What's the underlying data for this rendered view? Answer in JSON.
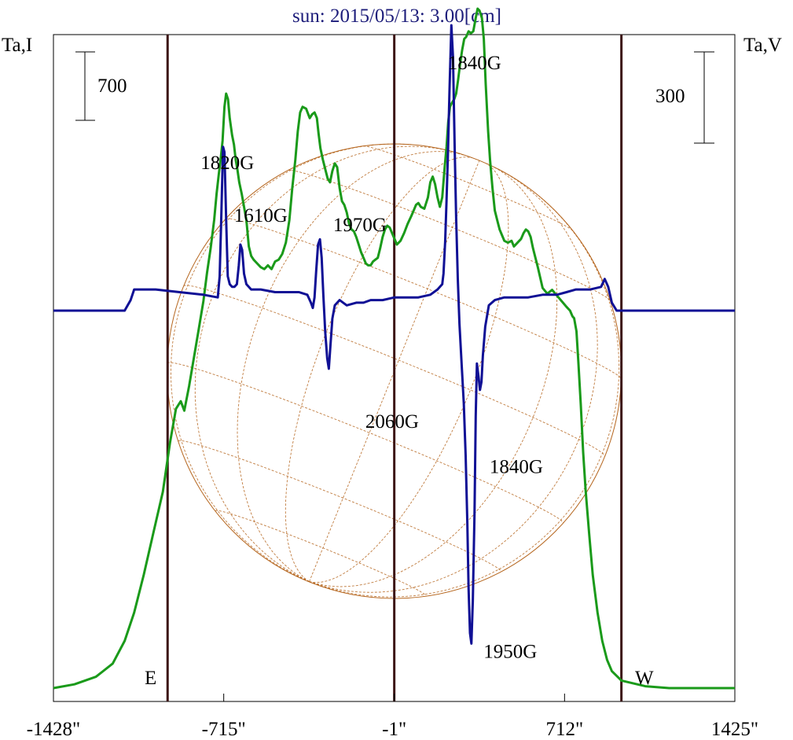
{
  "chart_data": {
    "type": "line",
    "title": "sun: 2015/05/13: 3.00[cm]",
    "left_axis_label": "Ta,I",
    "right_axis_label": "Ta,V",
    "left_scale_label": "700",
    "right_scale_label": "300",
    "xlim": [
      -1428,
      1425
    ],
    "x_ticks": [
      {
        "value": -1428,
        "label": "-1428\""
      },
      {
        "value": -715,
        "label": "-715\""
      },
      {
        "value": -1,
        "label": "-1\""
      },
      {
        "value": 712,
        "label": "712\""
      },
      {
        "value": 1425,
        "label": "1425\""
      }
    ],
    "vertical_lines": [
      -950,
      -1,
      950
    ],
    "limb_labels": {
      "east": "E",
      "west": "W"
    },
    "grid": false,
    "colors": {
      "intensity": "#1a9a1a",
      "polarization": "#101095",
      "disk": "#b5651d",
      "vlines": "#3c1414",
      "title": "#1c1c7a"
    },
    "series": [
      {
        "key": "intensity",
        "points": [
          [
            -1428,
            0.0
          ],
          [
            -1340,
            0.02
          ],
          [
            -1250,
            0.06
          ],
          [
            -1180,
            0.13
          ],
          [
            -1130,
            0.25
          ],
          [
            -1090,
            0.4
          ],
          [
            -1050,
            0.6
          ],
          [
            -1010,
            0.82
          ],
          [
            -970,
            1.04
          ],
          [
            -940,
            1.3
          ],
          [
            -915,
            1.48
          ],
          [
            -895,
            1.52
          ],
          [
            -880,
            1.47
          ],
          [
            -860,
            1.6
          ],
          [
            -840,
            1.75
          ],
          [
            -820,
            1.9
          ],
          [
            -800,
            2.05
          ],
          [
            -785,
            2.2
          ],
          [
            -770,
            2.33
          ],
          [
            -755,
            2.48
          ],
          [
            -745,
            2.62
          ],
          [
            -735,
            2.73
          ],
          [
            -728,
            2.8
          ],
          [
            -720,
            2.9
          ],
          [
            -712,
            3.08
          ],
          [
            -705,
            3.15
          ],
          [
            -697,
            3.12
          ],
          [
            -690,
            3.02
          ],
          [
            -680,
            2.93
          ],
          [
            -672,
            2.88
          ],
          [
            -665,
            2.8
          ],
          [
            -658,
            2.75
          ],
          [
            -650,
            2.68
          ],
          [
            -640,
            2.62
          ],
          [
            -630,
            2.55
          ],
          [
            -620,
            2.48
          ],
          [
            -610,
            2.34
          ],
          [
            -600,
            2.29
          ],
          [
            -590,
            2.27
          ],
          [
            -575,
            2.25
          ],
          [
            -560,
            2.23
          ],
          [
            -545,
            2.22
          ],
          [
            -530,
            2.24
          ],
          [
            -515,
            2.22
          ],
          [
            -500,
            2.26
          ],
          [
            -485,
            2.27
          ],
          [
            -470,
            2.3
          ],
          [
            -455,
            2.36
          ],
          [
            -440,
            2.48
          ],
          [
            -428,
            2.65
          ],
          [
            -415,
            2.8
          ],
          [
            -405,
            2.95
          ],
          [
            -395,
            3.05
          ],
          [
            -385,
            3.08
          ],
          [
            -370,
            3.07
          ],
          [
            -355,
            3.02
          ],
          [
            -345,
            3.04
          ],
          [
            -335,
            3.05
          ],
          [
            -325,
            3.02
          ],
          [
            -318,
            2.94
          ],
          [
            -310,
            2.86
          ],
          [
            -300,
            2.8
          ],
          [
            -290,
            2.75
          ],
          [
            -280,
            2.7
          ],
          [
            -270,
            2.68
          ],
          [
            -260,
            2.74
          ],
          [
            -250,
            2.78
          ],
          [
            -240,
            2.76
          ],
          [
            -230,
            2.65
          ],
          [
            -220,
            2.58
          ],
          [
            -210,
            2.56
          ],
          [
            -200,
            2.52
          ],
          [
            -190,
            2.46
          ],
          [
            -180,
            2.43
          ],
          [
            -170,
            2.42
          ],
          [
            -160,
            2.39
          ],
          [
            -150,
            2.35
          ],
          [
            -140,
            2.31
          ],
          [
            -130,
            2.28
          ],
          [
            -120,
            2.25
          ],
          [
            -110,
            2.24
          ],
          [
            -100,
            2.24
          ],
          [
            -90,
            2.26
          ],
          [
            -80,
            2.27
          ],
          [
            -70,
            2.28
          ],
          [
            -60,
            2.33
          ],
          [
            -50,
            2.39
          ],
          [
            -40,
            2.43
          ],
          [
            -30,
            2.45
          ],
          [
            -20,
            2.44
          ],
          [
            -10,
            2.41
          ],
          [
            0,
            2.38
          ],
          [
            10,
            2.35
          ],
          [
            25,
            2.37
          ],
          [
            40,
            2.41
          ],
          [
            55,
            2.46
          ],
          [
            70,
            2.5
          ],
          [
            80,
            2.53
          ],
          [
            90,
            2.56
          ],
          [
            100,
            2.57
          ],
          [
            110,
            2.55
          ],
          [
            125,
            2.54
          ],
          [
            140,
            2.6
          ],
          [
            150,
            2.68
          ],
          [
            160,
            2.71
          ],
          [
            170,
            2.67
          ],
          [
            180,
            2.6
          ],
          [
            190,
            2.55
          ],
          [
            200,
            2.6
          ],
          [
            210,
            2.76
          ],
          [
            218,
            2.87
          ],
          [
            225,
            3.0
          ],
          [
            232,
            3.08
          ],
          [
            240,
            3.1
          ],
          [
            250,
            3.12
          ],
          [
            258,
            3.15
          ],
          [
            266,
            3.22
          ],
          [
            274,
            3.3
          ],
          [
            283,
            3.38
          ],
          [
            292,
            3.44
          ],
          [
            300,
            3.45
          ],
          [
            310,
            3.48
          ],
          [
            320,
            3.47
          ],
          [
            330,
            3.48
          ],
          [
            340,
            3.55
          ],
          [
            348,
            3.6
          ],
          [
            356,
            3.59
          ],
          [
            366,
            3.55
          ],
          [
            374,
            3.44
          ],
          [
            382,
            3.2
          ],
          [
            392,
            2.95
          ],
          [
            400,
            2.8
          ],
          [
            410,
            2.65
          ],
          [
            420,
            2.53
          ],
          [
            430,
            2.48
          ],
          [
            440,
            2.43
          ],
          [
            450,
            2.4
          ],
          [
            460,
            2.37
          ],
          [
            475,
            2.36
          ],
          [
            490,
            2.37
          ],
          [
            500,
            2.34
          ],
          [
            515,
            2.36
          ],
          [
            530,
            2.38
          ],
          [
            540,
            2.41
          ],
          [
            550,
            2.43
          ],
          [
            560,
            2.42
          ],
          [
            570,
            2.39
          ],
          [
            580,
            2.33
          ],
          [
            600,
            2.23
          ],
          [
            620,
            2.12
          ],
          [
            640,
            2.09
          ],
          [
            660,
            2.11
          ],
          [
            680,
            2.08
          ],
          [
            700,
            2.05
          ],
          [
            720,
            2.02
          ],
          [
            735,
            2.0
          ],
          [
            745,
            1.97
          ],
          [
            752,
            1.96
          ],
          [
            762,
            1.89
          ],
          [
            770,
            1.72
          ],
          [
            780,
            1.5
          ],
          [
            790,
            1.25
          ],
          [
            800,
            1.05
          ],
          [
            815,
            0.82
          ],
          [
            830,
            0.6
          ],
          [
            850,
            0.4
          ],
          [
            870,
            0.25
          ],
          [
            890,
            0.15
          ],
          [
            910,
            0.09
          ],
          [
            950,
            0.04
          ],
          [
            1050,
            0.01
          ],
          [
            1150,
            0.0
          ],
          [
            1300,
            0.0
          ],
          [
            1425,
            0.0
          ]
        ]
      },
      {
        "key": "polarization",
        "points": [
          [
            -1428,
            0.0
          ],
          [
            -1300,
            0.0
          ],
          [
            -1200,
            0.0
          ],
          [
            -1130,
            0.0
          ],
          [
            -1105,
            0.04
          ],
          [
            -1090,
            0.08
          ],
          [
            -1000,
            0.08
          ],
          [
            -900,
            0.07
          ],
          [
            -800,
            0.06
          ],
          [
            -740,
            0.05
          ],
          [
            -732,
            0.13
          ],
          [
            -725,
            0.36
          ],
          [
            -718,
            0.62
          ],
          [
            -712,
            0.6
          ],
          [
            -705,
            0.35
          ],
          [
            -698,
            0.13
          ],
          [
            -690,
            0.1
          ],
          [
            -680,
            0.09
          ],
          [
            -670,
            0.09
          ],
          [
            -660,
            0.1
          ],
          [
            -652,
            0.17
          ],
          [
            -645,
            0.25
          ],
          [
            -638,
            0.23
          ],
          [
            -630,
            0.14
          ],
          [
            -620,
            0.1
          ],
          [
            -600,
            0.08
          ],
          [
            -560,
            0.08
          ],
          [
            -500,
            0.07
          ],
          [
            -450,
            0.07
          ],
          [
            -400,
            0.07
          ],
          [
            -365,
            0.06
          ],
          [
            -350,
            0.03
          ],
          [
            -342,
            0.01
          ],
          [
            -335,
            0.05
          ],
          [
            -328,
            0.15
          ],
          [
            -320,
            0.25
          ],
          [
            -312,
            0.27
          ],
          [
            -305,
            0.2
          ],
          [
            -298,
            0.06
          ],
          [
            -290,
            -0.08
          ],
          [
            -282,
            -0.18
          ],
          [
            -275,
            -0.22
          ],
          [
            -268,
            -0.13
          ],
          [
            -260,
            -0.03
          ],
          [
            -250,
            0.02
          ],
          [
            -230,
            0.04
          ],
          [
            -200,
            0.02
          ],
          [
            -160,
            0.03
          ],
          [
            -130,
            0.03
          ],
          [
            -100,
            0.04
          ],
          [
            -50,
            0.04
          ],
          [
            0,
            0.05
          ],
          [
            50,
            0.05
          ],
          [
            100,
            0.05
          ],
          [
            150,
            0.06
          ],
          [
            180,
            0.08
          ],
          [
            200,
            0.1
          ],
          [
            205,
            0.14
          ],
          [
            212,
            0.26
          ],
          [
            218,
            0.42
          ],
          [
            224,
            0.6
          ],
          [
            230,
            0.83
          ],
          [
            238,
            1.08
          ],
          [
            245,
            0.96
          ],
          [
            252,
            0.62
          ],
          [
            258,
            0.35
          ],
          [
            265,
            0.12
          ],
          [
            272,
            -0.05
          ],
          [
            282,
            -0.22
          ],
          [
            290,
            -0.35
          ],
          [
            298,
            -0.55
          ],
          [
            305,
            -0.8
          ],
          [
            310,
            -1.05
          ],
          [
            316,
            -1.22
          ],
          [
            322,
            -1.26
          ],
          [
            328,
            -1.1
          ],
          [
            335,
            -0.76
          ],
          [
            340,
            -0.4
          ],
          [
            345,
            -0.2
          ],
          [
            352,
            -0.25
          ],
          [
            358,
            -0.3
          ],
          [
            364,
            -0.27
          ],
          [
            370,
            -0.17
          ],
          [
            380,
            -0.06
          ],
          [
            395,
            0.02
          ],
          [
            420,
            0.04
          ],
          [
            460,
            0.05
          ],
          [
            520,
            0.05
          ],
          [
            560,
            0.05
          ],
          [
            620,
            0.06
          ],
          [
            680,
            0.06
          ],
          [
            720,
            0.07
          ],
          [
            760,
            0.08
          ],
          [
            820,
            0.08
          ],
          [
            865,
            0.09
          ],
          [
            880,
            0.12
          ],
          [
            895,
            0.09
          ],
          [
            910,
            0.03
          ],
          [
            930,
            0.0
          ],
          [
            1050,
            0.0
          ],
          [
            1150,
            0.0
          ],
          [
            1300,
            0.0
          ],
          [
            1425,
            0.0
          ]
        ]
      }
    ],
    "annotations": [
      {
        "text": "1820G",
        "x": -700,
        "y": 2.75
      },
      {
        "text": "1610G",
        "x": -560,
        "y": 2.47
      },
      {
        "text": "1970G",
        "x": -145,
        "y": 2.42
      },
      {
        "text": "1840G",
        "x": 335,
        "y": 3.28
      },
      {
        "text": "2060G",
        "x": -10,
        "y": 1.38
      },
      {
        "text": "1840G",
        "x": 510,
        "y": 1.14
      },
      {
        "text": "1950G",
        "x": 485,
        "y": 0.16
      }
    ]
  }
}
